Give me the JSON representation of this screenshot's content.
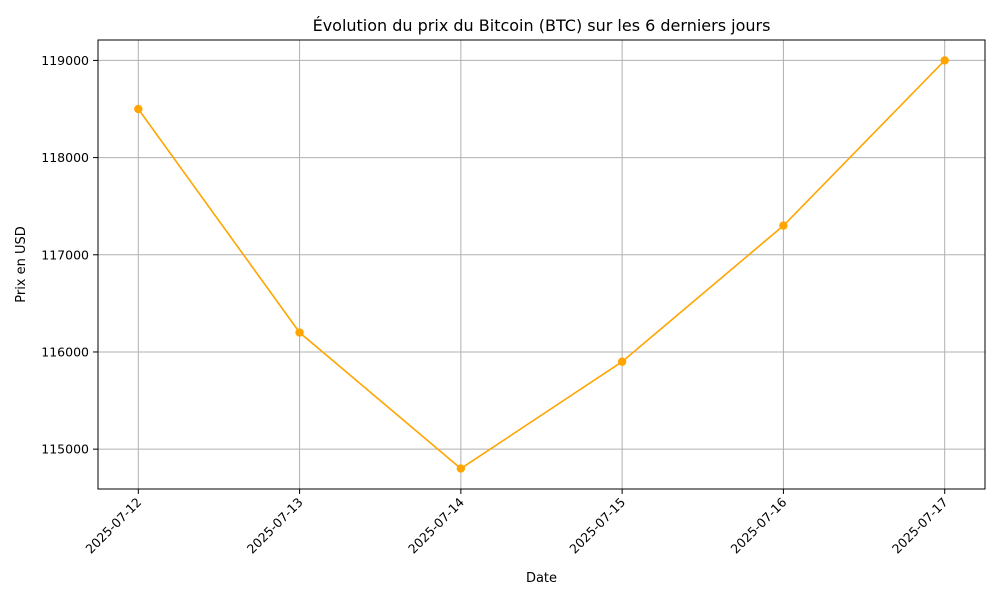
{
  "chart_data": {
    "type": "line",
    "title": "Évolution du prix du Bitcoin (BTC) sur les 6 derniers jours",
    "xlabel": "Date",
    "ylabel": "Prix en USD",
    "categories": [
      "2025-07-12",
      "2025-07-13",
      "2025-07-14",
      "2025-07-15",
      "2025-07-16",
      "2025-07-17"
    ],
    "series": [
      {
        "values": [
          118500,
          116200,
          114800,
          115900,
          117300,
          119000
        ]
      }
    ],
    "yticks": [
      115000,
      116000,
      117000,
      118000,
      119000
    ],
    "ylim": [
      114590,
      119210
    ],
    "x_tick_rotation_deg": 45,
    "grid": true,
    "line_color": "#ffa500",
    "marker": "circle"
  }
}
